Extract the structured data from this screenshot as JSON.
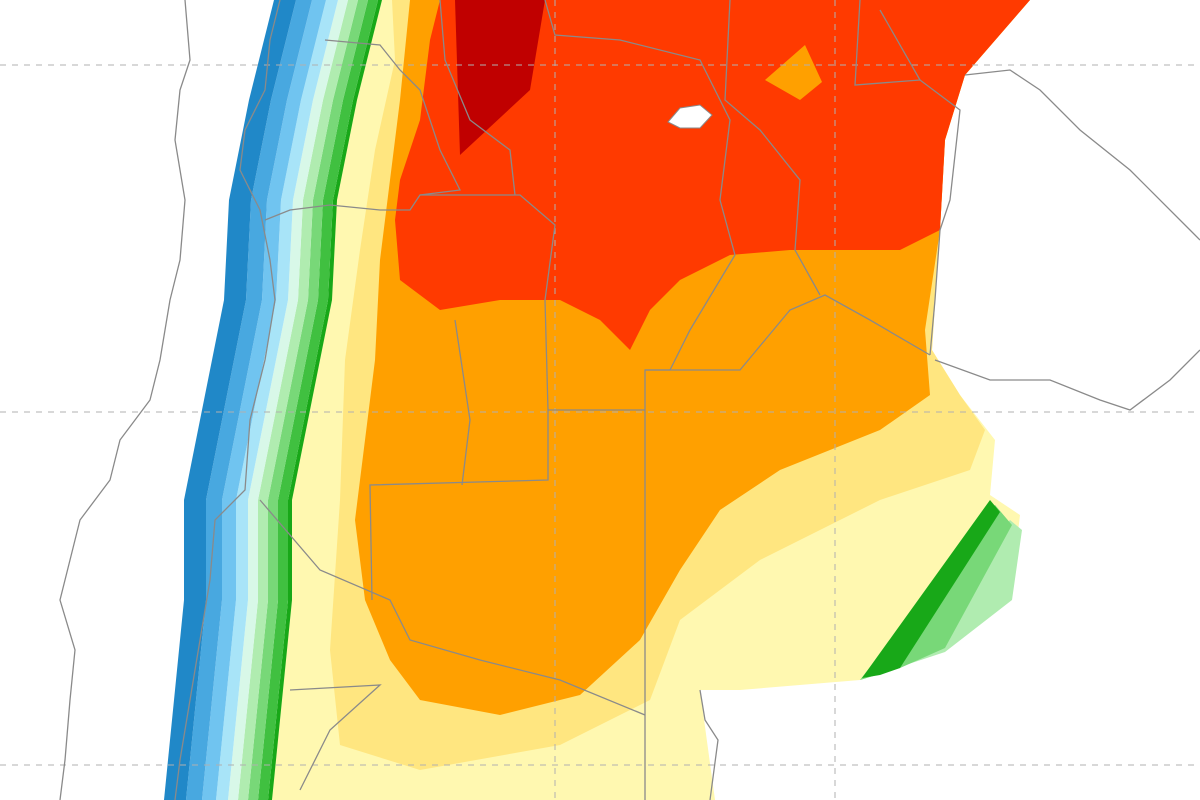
{
  "map": {
    "background": "#ffffff",
    "border_color": "#8a8a8a",
    "grid_color": "#b0b0b0",
    "fields": {
      "pale_yellow": "#fff8b0",
      "light_yellow": "#ffe680",
      "orange": "#ffa000",
      "red_orange": "#ff3a00",
      "dark_red": "#c00000"
    },
    "west_bands": [
      {
        "color": "#18a818"
      },
      {
        "color": "#40c040"
      },
      {
        "color": "#78d878"
      },
      {
        "color": "#b0ecb0"
      },
      {
        "color": "#d8f8e8"
      },
      {
        "color": "#a8e4f8"
      },
      {
        "color": "#70c4f0"
      },
      {
        "color": "#48a8e0"
      },
      {
        "color": "#2088c8"
      }
    ]
  }
}
